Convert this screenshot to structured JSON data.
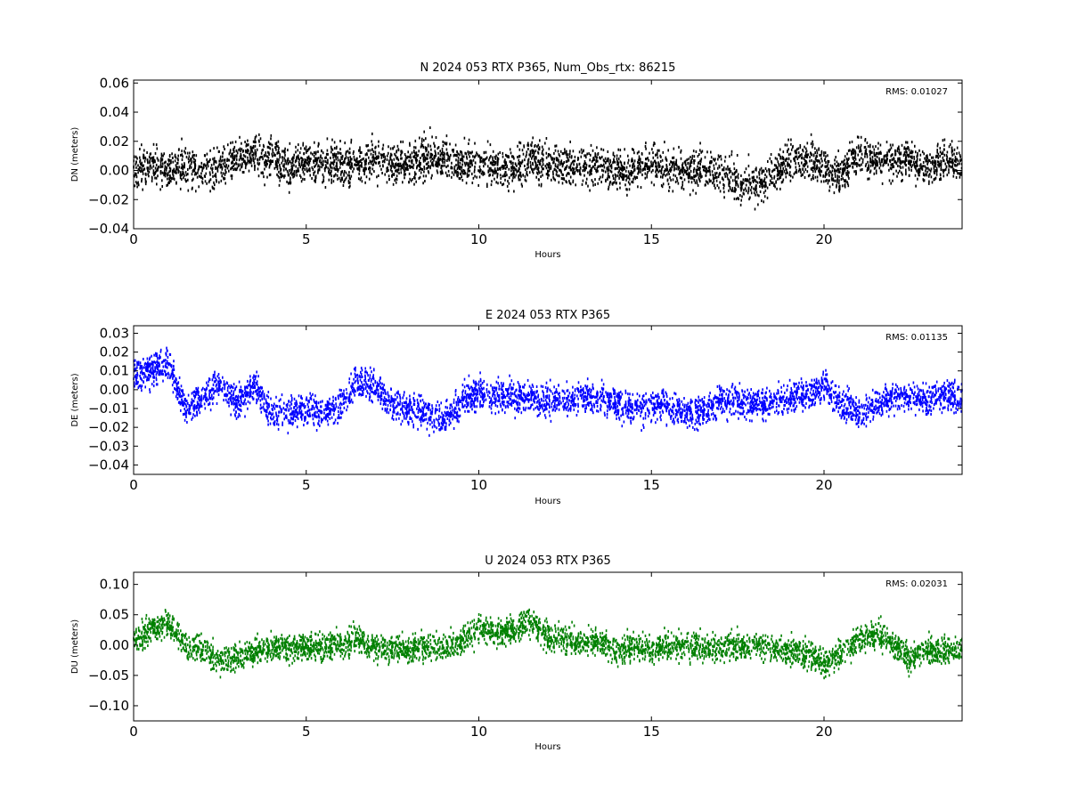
{
  "chart_data": [
    {
      "type": "scatter",
      "title": "N 2024 053 RTX  P365, Num_Obs_rtx: 86215",
      "xlabel": "Hours",
      "ylabel": "DN (meters)",
      "xlim": [
        0,
        24
      ],
      "ylim": [
        -0.04,
        0.062
      ],
      "xticks": [
        0,
        5,
        10,
        15,
        20
      ],
      "xtick_labels": [
        "0",
        "5",
        "10",
        "15",
        "20"
      ],
      "yticks": [
        -0.04,
        -0.02,
        0.0,
        0.02,
        0.04,
        0.06
      ],
      "ytick_labels": [
        "−0.04",
        "−0.02",
        "0.00",
        "0.02",
        "0.04",
        "0.06"
      ],
      "annotation": "RMS:  0.01027",
      "annotation_color": "#0000ff",
      "grid": false,
      "series": [
        {
          "color": "#000000",
          "marker": "dot",
          "scatter_spread": 0.012,
          "x": [
            0.0,
            0.5,
            1.0,
            1.5,
            2.0,
            2.5,
            3.0,
            3.5,
            4.0,
            4.5,
            5.0,
            5.5,
            6.0,
            6.5,
            7.0,
            7.5,
            8.0,
            8.5,
            9.0,
            9.5,
            10.0,
            10.5,
            11.0,
            11.5,
            12.0,
            12.5,
            13.0,
            13.5,
            14.0,
            14.5,
            15.0,
            15.5,
            16.0,
            16.5,
            17.0,
            17.5,
            18.0,
            18.5,
            19.0,
            19.5,
            20.0,
            20.5,
            21.0,
            21.5,
            22.0,
            22.5,
            23.0,
            23.5,
            24.0
          ],
          "y": [
            0.003,
            0.002,
            0.0,
            0.003,
            0.0,
            0.002,
            0.008,
            0.01,
            0.007,
            0.002,
            0.005,
            0.006,
            0.004,
            0.005,
            0.006,
            0.005,
            0.004,
            0.01,
            0.008,
            0.006,
            0.004,
            0.003,
            0.0,
            0.008,
            0.003,
            0.004,
            0.002,
            0.004,
            0.0,
            0.001,
            0.006,
            0.0,
            0.0,
            0.0,
            -0.002,
            -0.008,
            -0.01,
            -0.002,
            0.006,
            0.008,
            0.003,
            -0.004,
            0.012,
            0.008,
            0.006,
            0.008,
            0.002,
            0.006,
            0.004
          ]
        }
      ]
    },
    {
      "type": "scatter",
      "title": "E 2024 053 RTX  P365",
      "xlabel": "Hours",
      "ylabel": "DE (meters)",
      "xlim": [
        0,
        24
      ],
      "ylim": [
        -0.045,
        0.034
      ],
      "xticks": [
        0,
        5,
        10,
        15,
        20
      ],
      "xtick_labels": [
        "0",
        "5",
        "10",
        "15",
        "20"
      ],
      "yticks": [
        -0.04,
        -0.03,
        -0.02,
        -0.01,
        0.0,
        0.01,
        0.02,
        0.03
      ],
      "ytick_labels": [
        "−0.04",
        "−0.03",
        "−0.02",
        "−0.01",
        "0.00",
        "0.01",
        "0.02",
        "0.03"
      ],
      "annotation": "RMS:  0.01135",
      "annotation_color": "#0000ff",
      "grid": false,
      "series": [
        {
          "color": "#0000ff",
          "marker": "dot",
          "scatter_spread": 0.0075,
          "x": [
            0.0,
            0.5,
            1.0,
            1.5,
            2.0,
            2.5,
            3.0,
            3.5,
            4.0,
            4.5,
            5.0,
            5.5,
            6.0,
            6.5,
            7.0,
            7.5,
            8.0,
            8.5,
            9.0,
            9.5,
            10.0,
            10.5,
            11.0,
            11.5,
            12.0,
            12.5,
            13.0,
            13.5,
            14.0,
            14.5,
            15.0,
            15.5,
            16.0,
            16.5,
            17.0,
            17.5,
            18.0,
            18.5,
            19.0,
            19.5,
            20.0,
            20.5,
            21.0,
            21.5,
            22.0,
            22.5,
            23.0,
            23.5,
            24.0
          ],
          "y": [
            0.008,
            0.01,
            0.014,
            -0.01,
            -0.005,
            0.004,
            -0.008,
            0.002,
            -0.012,
            -0.012,
            -0.01,
            -0.012,
            -0.008,
            0.004,
            0.002,
            -0.008,
            -0.01,
            -0.012,
            -0.016,
            -0.006,
            -0.002,
            -0.003,
            -0.004,
            -0.004,
            -0.006,
            -0.006,
            -0.004,
            -0.004,
            -0.008,
            -0.01,
            -0.008,
            -0.01,
            -0.011,
            -0.012,
            -0.006,
            -0.006,
            -0.008,
            -0.006,
            -0.004,
            -0.004,
            0.002,
            -0.008,
            -0.012,
            -0.008,
            -0.004,
            -0.004,
            -0.006,
            -0.002,
            -0.006
          ]
        }
      ]
    },
    {
      "type": "scatter",
      "title": "U 2024 053 RTX  P365",
      "xlabel": "Hours",
      "ylabel": "DU (meters)",
      "xlim": [
        0,
        24
      ],
      "ylim": [
        -0.125,
        0.12
      ],
      "xticks": [
        0,
        5,
        10,
        15,
        20
      ],
      "xtick_labels": [
        "0",
        "5",
        "10",
        "15",
        "20"
      ],
      "yticks": [
        -0.1,
        -0.05,
        0.0,
        0.05,
        0.1
      ],
      "ytick_labels": [
        "−0.10",
        "−0.05",
        "0.00",
        "0.05",
        "0.10"
      ],
      "annotation": "RMS:  0.02031",
      "annotation_color": "#0000ff",
      "grid": false,
      "series": [
        {
          "color": "#008000",
          "marker": "dot",
          "scatter_spread": 0.02,
          "x": [
            0.0,
            0.5,
            1.0,
            1.5,
            2.0,
            2.5,
            3.0,
            3.5,
            4.0,
            4.5,
            5.0,
            5.5,
            6.0,
            6.5,
            7.0,
            7.5,
            8.0,
            8.5,
            9.0,
            9.5,
            10.0,
            10.5,
            11.0,
            11.5,
            12.0,
            12.5,
            13.0,
            13.5,
            14.0,
            14.5,
            15.0,
            15.5,
            16.0,
            16.5,
            17.0,
            17.5,
            18.0,
            18.5,
            19.0,
            19.5,
            20.0,
            20.5,
            21.0,
            21.5,
            22.0,
            22.5,
            23.0,
            23.5,
            24.0
          ],
          "y": [
            0.01,
            0.025,
            0.035,
            0.0,
            -0.01,
            -0.025,
            -0.02,
            -0.01,
            -0.005,
            -0.005,
            -0.005,
            0.0,
            0.0,
            0.01,
            -0.005,
            -0.005,
            -0.008,
            0.0,
            -0.005,
            0.005,
            0.03,
            0.02,
            0.025,
            0.04,
            0.01,
            0.01,
            0.005,
            0.005,
            -0.01,
            0.0,
            -0.008,
            0.0,
            0.0,
            -0.005,
            -0.005,
            0.0,
            0.0,
            -0.005,
            -0.01,
            -0.015,
            -0.03,
            -0.015,
            0.01,
            0.02,
            0.0,
            -0.02,
            -0.01,
            -0.008,
            -0.008
          ]
        }
      ]
    }
  ]
}
